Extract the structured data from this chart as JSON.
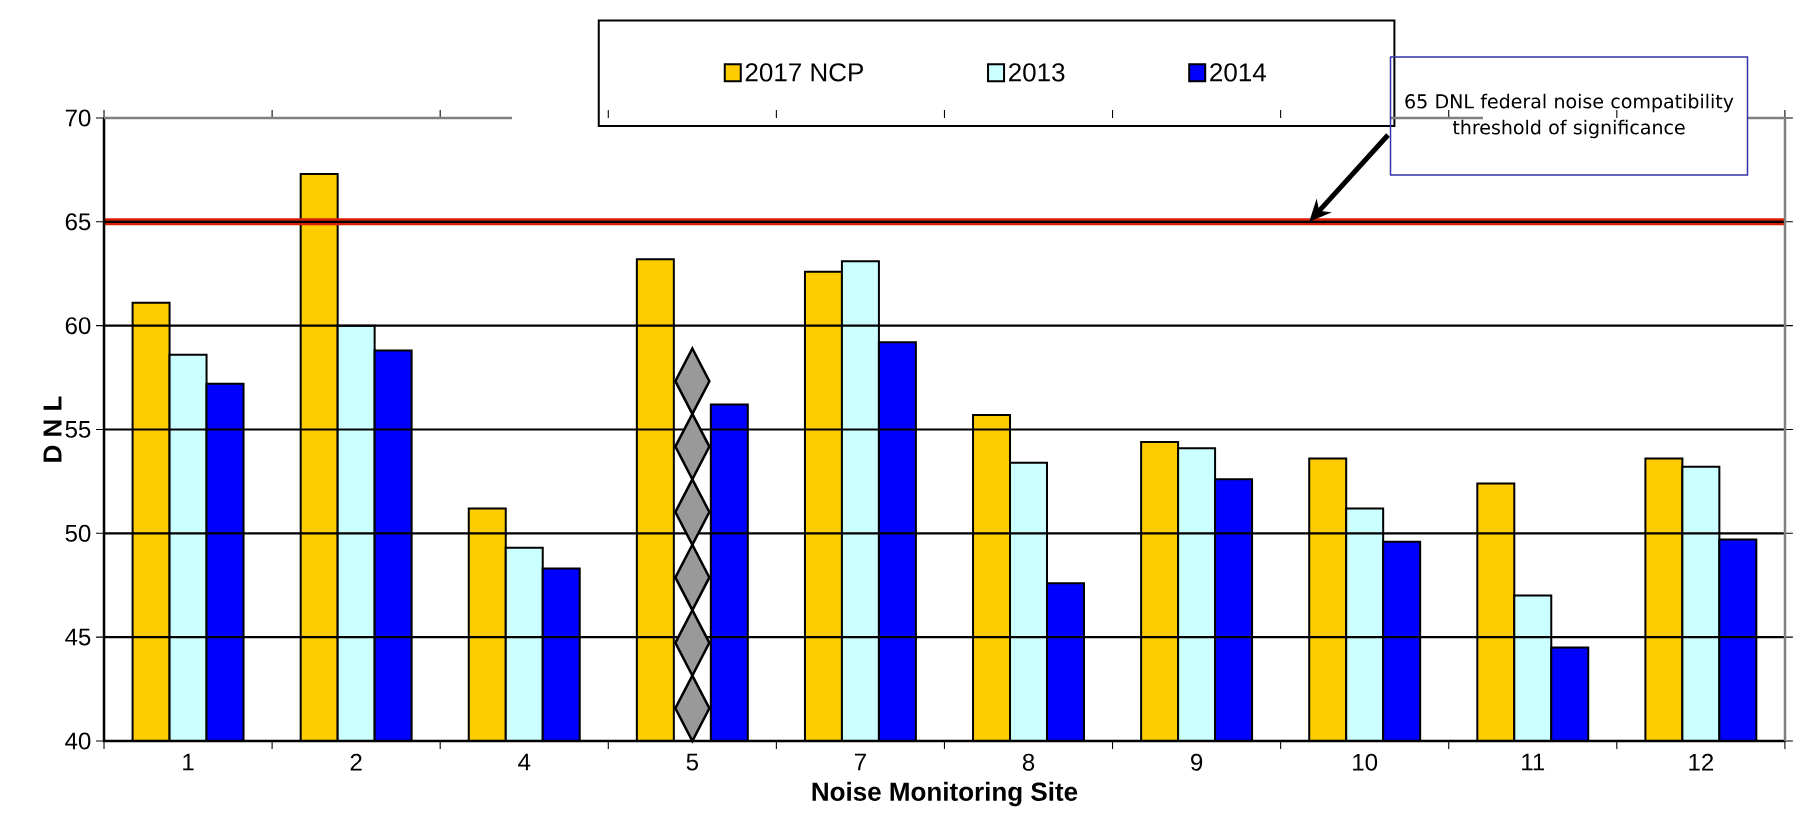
{
  "chart_data": {
    "type": "bar",
    "xlabel": "Noise Monitoring Site",
    "ylabel": "D N L",
    "categories": [
      "1",
      "2",
      "4",
      "5",
      "7",
      "8",
      "9",
      "10",
      "11",
      "12"
    ],
    "series": [
      {
        "name": "2017 NCP",
        "color": "#ffcc00",
        "values": [
          61.1,
          67.3,
          51.2,
          63.2,
          62.6,
          55.7,
          54.4,
          53.6,
          52.4,
          53.6
        ]
      },
      {
        "name": "2013",
        "color": "#ccffff",
        "values": [
          58.6,
          60.0,
          49.3,
          null,
          63.1,
          53.4,
          54.1,
          51.2,
          47.0,
          53.2
        ]
      },
      {
        "name": "2014",
        "color": "#0000ff",
        "values": [
          57.2,
          58.8,
          48.3,
          56.2,
          59.2,
          47.6,
          52.6,
          49.6,
          44.5,
          49.7
        ]
      }
    ],
    "ylim": [
      40,
      70
    ],
    "yticks": [
      40,
      45,
      50,
      55,
      60,
      65,
      70
    ],
    "grid": "y",
    "legend": "top",
    "ref_lines": [
      {
        "axis": "y",
        "value": 65,
        "color": "#d81e05"
      }
    ],
    "annotations": [
      "65 DNL federal noise compatibility threshold of significance"
    ]
  }
}
